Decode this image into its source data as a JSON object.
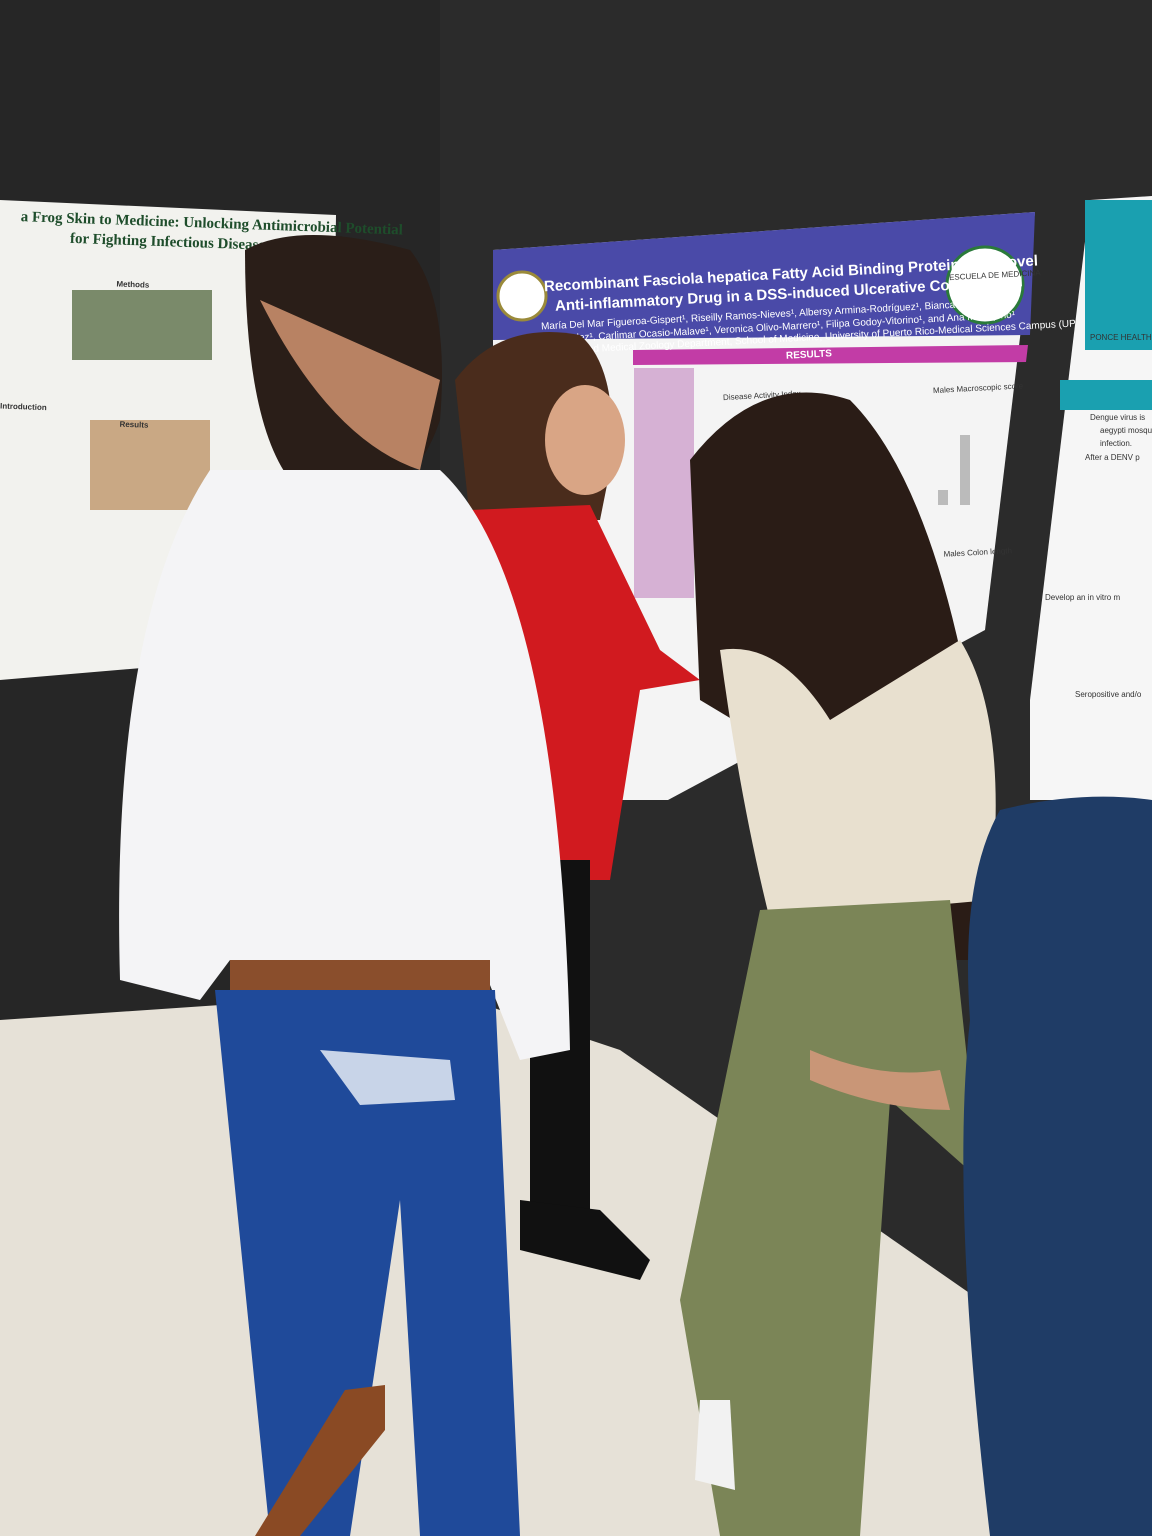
{
  "center_poster": {
    "title_lines": [
      "Recombinant Fasciola hepatica Fatty Acid Binding Protein as a Novel",
      "Anti-inflammatory Drug in a DSS-induced Ulcerative Colitis Model"
    ],
    "author_lines": [
      "María Del Mar Figueroa-Gispert¹, Riseilly Ramos-Nieves¹, Albersy Armina-Rodríguez¹, Bianca N. Valdés-",
      "Fernández¹, Carlimar Ocasio-Malave¹, Veronica Olivo-Marrero¹, Filipa Godoy-Vitorino¹, and Ana M. Espino¹"
    ],
    "affiliation": "and Medical Zoology Department, School of Medicine, University of Puerto Rico-Medical Sciences Campus (UPR-MSC)",
    "section": "RESULTS",
    "chart_titles": [
      "Disease Activity Index",
      "Males Macroscopic score",
      "Males Colon length"
    ],
    "logo_text": "ESCUELA DE MEDICINA"
  },
  "left_poster": {
    "title_lines": [
      "a Frog Skin to Medicine: Unlocking Antimicrobial Potential",
      "for Fighting Infectious Diseases"
    ],
    "sections": [
      "Methods",
      "Results",
      "Introduction"
    ]
  },
  "right_poster": {
    "logo_text": "PONCE HEALTH",
    "lines": [
      "Dengue virus is",
      "aegypti mosquit",
      "infection.",
      "After a DENV p",
      "Develop an in vitro m",
      "Seropositive and/o"
    ]
  }
}
